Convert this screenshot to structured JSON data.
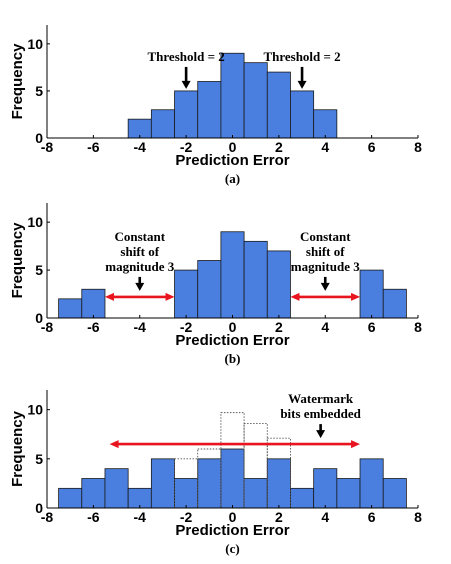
{
  "colors": {
    "bar_fill": "#4a7fe0",
    "bar_stroke": "#1a1a1a",
    "red_arrow": "#e8141e",
    "ghost_stroke": "#555555"
  },
  "chart_data": [
    {
      "type": "bar",
      "caption": "(a)",
      "xlabel": "Prediction Error",
      "ylabel": "Frequency",
      "xlim": [
        -8,
        8
      ],
      "ylim": [
        0,
        12
      ],
      "xticks": [
        -8,
        -6,
        -4,
        -2,
        0,
        2,
        4,
        6,
        8
      ],
      "yticks": [
        0,
        5,
        10
      ],
      "bin_width": 1,
      "x": [
        -4,
        -3,
        -2,
        -1,
        0,
        1,
        2,
        3,
        4
      ],
      "values": [
        2,
        3,
        5,
        6,
        9,
        8,
        7,
        5,
        3
      ],
      "annotations": [
        {
          "lines": [
            "Threshold = 2"
          ],
          "x": -2,
          "value": 5,
          "arrow": "down"
        },
        {
          "lines": [
            "Threshold = 2"
          ],
          "x": 3,
          "value": 5,
          "arrow": "down"
        }
      ]
    },
    {
      "type": "bar",
      "caption": "(b)",
      "xlabel": "Prediction Error",
      "ylabel": "Frequency",
      "xlim": [
        -8,
        8
      ],
      "ylim": [
        0,
        12
      ],
      "xticks": [
        -8,
        -6,
        -4,
        -2,
        0,
        2,
        4,
        6,
        8
      ],
      "yticks": [
        0,
        5,
        10
      ],
      "bin_width": 1,
      "x": [
        -7,
        -6,
        -2,
        -1,
        0,
        1,
        2,
        6,
        7
      ],
      "values": [
        2,
        3,
        5,
        6,
        9,
        8,
        7,
        5,
        3
      ],
      "shift_arrows": [
        {
          "from": -5.5,
          "to": -2.5,
          "value": 2.2
        },
        {
          "from": 2.5,
          "to": 5.5,
          "value": 2.2
        }
      ],
      "annotations": [
        {
          "lines": [
            "Constant",
            "shift of",
            "magnitude 3"
          ],
          "x": -4,
          "value": 2.2,
          "arrow": "down"
        },
        {
          "lines": [
            "Constant",
            "shift of",
            "magnitude 3"
          ],
          "x": 4,
          "value": 2.2,
          "arrow": "down"
        }
      ]
    },
    {
      "type": "bar",
      "caption": "(c)",
      "xlabel": "Prediction Error",
      "ylabel": "Frequency",
      "xlim": [
        -8,
        8
      ],
      "ylim": [
        0,
        12
      ],
      "xticks": [
        -8,
        -6,
        -4,
        -2,
        0,
        2,
        4,
        6,
        8
      ],
      "yticks": [
        0,
        5,
        10
      ],
      "bin_width": 1,
      "x": [
        -7,
        -6,
        -5,
        -4,
        -3,
        -2,
        -1,
        0,
        1,
        2,
        3,
        4,
        5,
        6,
        7
      ],
      "values": [
        2,
        3,
        4,
        2,
        5,
        3,
        5,
        6,
        3,
        5,
        2,
        4,
        3,
        5,
        3
      ],
      "ghost_outline": {
        "x": [
          -2,
          -1,
          0,
          1,
          2
        ],
        "values": [
          5,
          6,
          9.7,
          8.6,
          7.1
        ]
      },
      "spread_arrow": {
        "from": -5.3,
        "to": 5.5,
        "value": 6.5
      },
      "annotations": [
        {
          "lines": [
            "Watermark",
            "bits embedded"
          ],
          "x": 3.8,
          "value": 6.5,
          "arrow": "down"
        }
      ]
    }
  ]
}
